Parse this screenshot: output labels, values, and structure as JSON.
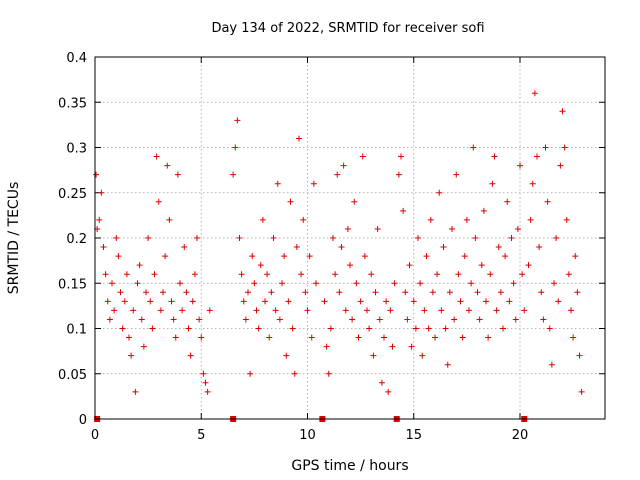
{
  "chart_data": {
    "type": "scatter",
    "title": "Day 134 of 2022, SRMTID for receiver sofi",
    "xlabel": "GPS time / hours",
    "ylabel": "SRMTID / TECUs",
    "xlim": [
      0,
      24
    ],
    "ylim": [
      0,
      0.4
    ],
    "xticks": [
      0,
      5,
      10,
      15,
      20
    ],
    "xtick_labels": [
      "0",
      "5",
      "10",
      "15",
      "20"
    ],
    "yticks": [
      0,
      0.05,
      0.1,
      0.15,
      0.2,
      0.25,
      0.3,
      0.35,
      0.4
    ],
    "ytick_labels": [
      "0",
      "0.05",
      "0.1",
      "0.15",
      "0.2",
      "0.25",
      "0.3",
      "0.35",
      "0.4"
    ],
    "grid": true,
    "marker": "plus",
    "color": "#e00000",
    "zero_value_points": [
      0.1,
      6.5,
      10.7,
      14.2,
      20.2
    ],
    "data_gap_hours": [
      5.5,
      6.5
    ],
    "series": [
      {
        "name": "SRMTID",
        "points": [
          [
            0.05,
            0.27
          ],
          [
            0.1,
            0.21
          ],
          [
            0.2,
            0.22
          ],
          [
            0.3,
            0.25
          ],
          [
            0.4,
            0.19
          ],
          [
            0.5,
            0.16
          ],
          [
            0.6,
            0.13
          ],
          [
            0.7,
            0.11
          ],
          [
            0.8,
            0.15
          ],
          [
            0.9,
            0.12
          ],
          [
            1.0,
            0.2
          ],
          [
            1.1,
            0.18
          ],
          [
            1.2,
            0.14
          ],
          [
            1.3,
            0.1
          ],
          [
            1.4,
            0.13
          ],
          [
            1.5,
            0.16
          ],
          [
            1.6,
            0.09
          ],
          [
            1.7,
            0.07
          ],
          [
            1.8,
            0.12
          ],
          [
            1.9,
            0.03
          ],
          [
            2.0,
            0.15
          ],
          [
            2.1,
            0.17
          ],
          [
            2.2,
            0.11
          ],
          [
            2.3,
            0.08
          ],
          [
            2.4,
            0.14
          ],
          [
            2.5,
            0.2
          ],
          [
            2.6,
            0.13
          ],
          [
            2.7,
            0.1
          ],
          [
            2.8,
            0.16
          ],
          [
            2.9,
            0.29
          ],
          [
            3.0,
            0.24
          ],
          [
            3.1,
            0.12
          ],
          [
            3.2,
            0.14
          ],
          [
            3.3,
            0.18
          ],
          [
            3.4,
            0.28
          ],
          [
            3.5,
            0.22
          ],
          [
            3.6,
            0.13
          ],
          [
            3.7,
            0.11
          ],
          [
            3.8,
            0.09
          ],
          [
            3.9,
            0.27
          ],
          [
            4.0,
            0.15
          ],
          [
            4.1,
            0.12
          ],
          [
            4.2,
            0.19
          ],
          [
            4.3,
            0.14
          ],
          [
            4.4,
            0.1
          ],
          [
            4.5,
            0.07
          ],
          [
            4.6,
            0.13
          ],
          [
            4.7,
            0.16
          ],
          [
            4.8,
            0.2
          ],
          [
            4.9,
            0.11
          ],
          [
            5.0,
            0.09
          ],
          [
            5.1,
            0.05
          ],
          [
            5.2,
            0.04
          ],
          [
            5.3,
            0.03
          ],
          [
            5.4,
            0.12
          ],
          [
            6.5,
            0.27
          ],
          [
            6.6,
            0.3
          ],
          [
            6.7,
            0.33
          ],
          [
            6.8,
            0.2
          ],
          [
            6.9,
            0.16
          ],
          [
            7.0,
            0.13
          ],
          [
            7.1,
            0.11
          ],
          [
            7.2,
            0.14
          ],
          [
            7.3,
            0.05
          ],
          [
            7.4,
            0.18
          ],
          [
            7.5,
            0.15
          ],
          [
            7.6,
            0.12
          ],
          [
            7.7,
            0.1
          ],
          [
            7.8,
            0.17
          ],
          [
            7.9,
            0.22
          ],
          [
            8.0,
            0.13
          ],
          [
            8.1,
            0.16
          ],
          [
            8.2,
            0.09
          ],
          [
            8.3,
            0.14
          ],
          [
            8.4,
            0.2
          ],
          [
            8.5,
            0.12
          ],
          [
            8.6,
            0.26
          ],
          [
            8.7,
            0.11
          ],
          [
            8.8,
            0.15
          ],
          [
            8.9,
            0.18
          ],
          [
            9.0,
            0.07
          ],
          [
            9.1,
            0.13
          ],
          [
            9.2,
            0.24
          ],
          [
            9.3,
            0.1
          ],
          [
            9.4,
            0.05
          ],
          [
            9.5,
            0.19
          ],
          [
            9.6,
            0.31
          ],
          [
            9.7,
            0.16
          ],
          [
            9.8,
            0.22
          ],
          [
            9.9,
            0.14
          ],
          [
            10.0,
            0.12
          ],
          [
            10.1,
            0.18
          ],
          [
            10.2,
            0.09
          ],
          [
            10.3,
            0.26
          ],
          [
            10.4,
            0.15
          ],
          [
            10.8,
            0.13
          ],
          [
            10.9,
            0.08
          ],
          [
            11.0,
            0.05
          ],
          [
            11.1,
            0.1
          ],
          [
            11.2,
            0.2
          ],
          [
            11.3,
            0.16
          ],
          [
            11.4,
            0.27
          ],
          [
            11.5,
            0.14
          ],
          [
            11.6,
            0.19
          ],
          [
            11.7,
            0.28
          ],
          [
            11.8,
            0.12
          ],
          [
            11.9,
            0.21
          ],
          [
            12.0,
            0.17
          ],
          [
            12.1,
            0.11
          ],
          [
            12.2,
            0.24
          ],
          [
            12.3,
            0.15
          ],
          [
            12.4,
            0.09
          ],
          [
            12.5,
            0.13
          ],
          [
            12.6,
            0.29
          ],
          [
            12.7,
            0.18
          ],
          [
            12.8,
            0.12
          ],
          [
            12.9,
            0.1
          ],
          [
            13.0,
            0.16
          ],
          [
            13.1,
            0.07
          ],
          [
            13.2,
            0.14
          ],
          [
            13.3,
            0.21
          ],
          [
            13.4,
            0.11
          ],
          [
            13.5,
            0.04
          ],
          [
            13.6,
            0.09
          ],
          [
            13.7,
            0.13
          ],
          [
            13.8,
            0.03
          ],
          [
            13.9,
            0.12
          ],
          [
            14.0,
            0.08
          ],
          [
            14.1,
            0.15
          ],
          [
            14.3,
            0.27
          ],
          [
            14.4,
            0.29
          ],
          [
            14.5,
            0.23
          ],
          [
            14.6,
            0.14
          ],
          [
            14.7,
            0.11
          ],
          [
            14.8,
            0.17
          ],
          [
            14.9,
            0.08
          ],
          [
            15.0,
            0.13
          ],
          [
            15.1,
            0.1
          ],
          [
            15.2,
            0.2
          ],
          [
            15.3,
            0.15
          ],
          [
            15.4,
            0.07
          ],
          [
            15.5,
            0.12
          ],
          [
            15.6,
            0.18
          ],
          [
            15.7,
            0.1
          ],
          [
            15.8,
            0.22
          ],
          [
            15.9,
            0.14
          ],
          [
            16.0,
            0.09
          ],
          [
            16.1,
            0.16
          ],
          [
            16.2,
            0.25
          ],
          [
            16.3,
            0.12
          ],
          [
            16.4,
            0.19
          ],
          [
            16.5,
            0.1
          ],
          [
            16.6,
            0.06
          ],
          [
            16.7,
            0.14
          ],
          [
            16.8,
            0.21
          ],
          [
            16.9,
            0.11
          ],
          [
            17.0,
            0.27
          ],
          [
            17.1,
            0.16
          ],
          [
            17.2,
            0.13
          ],
          [
            17.3,
            0.09
          ],
          [
            17.4,
            0.18
          ],
          [
            17.5,
            0.22
          ],
          [
            17.6,
            0.12
          ],
          [
            17.7,
            0.15
          ],
          [
            17.8,
            0.3
          ],
          [
            17.9,
            0.2
          ],
          [
            18.0,
            0.14
          ],
          [
            18.1,
            0.11
          ],
          [
            18.2,
            0.17
          ],
          [
            18.3,
            0.23
          ],
          [
            18.4,
            0.13
          ],
          [
            18.5,
            0.09
          ],
          [
            18.6,
            0.16
          ],
          [
            18.7,
            0.26
          ],
          [
            18.8,
            0.29
          ],
          [
            18.9,
            0.12
          ],
          [
            19.0,
            0.19
          ],
          [
            19.1,
            0.14
          ],
          [
            19.2,
            0.1
          ],
          [
            19.3,
            0.18
          ],
          [
            19.4,
            0.24
          ],
          [
            19.5,
            0.13
          ],
          [
            19.6,
            0.2
          ],
          [
            19.7,
            0.15
          ],
          [
            19.8,
            0.11
          ],
          [
            19.9,
            0.21
          ],
          [
            20.0,
            0.28
          ],
          [
            20.1,
            0.16
          ],
          [
            20.2,
            0.12
          ],
          [
            20.4,
            0.17
          ],
          [
            20.5,
            0.22
          ],
          [
            20.6,
            0.26
          ],
          [
            20.7,
            0.36
          ],
          [
            20.8,
            0.29
          ],
          [
            20.9,
            0.19
          ],
          [
            21.0,
            0.14
          ],
          [
            21.1,
            0.11
          ],
          [
            21.2,
            0.3
          ],
          [
            21.3,
            0.24
          ],
          [
            21.4,
            0.1
          ],
          [
            21.5,
            0.06
          ],
          [
            21.6,
            0.15
          ],
          [
            21.7,
            0.2
          ],
          [
            21.8,
            0.13
          ],
          [
            21.9,
            0.28
          ],
          [
            22.0,
            0.34
          ],
          [
            22.1,
            0.3
          ],
          [
            22.2,
            0.22
          ],
          [
            22.3,
            0.16
          ],
          [
            22.4,
            0.12
          ],
          [
            22.5,
            0.09
          ],
          [
            22.6,
            0.18
          ],
          [
            22.7,
            0.14
          ],
          [
            22.8,
            0.07
          ],
          [
            22.9,
            0.03
          ]
        ]
      }
    ]
  }
}
